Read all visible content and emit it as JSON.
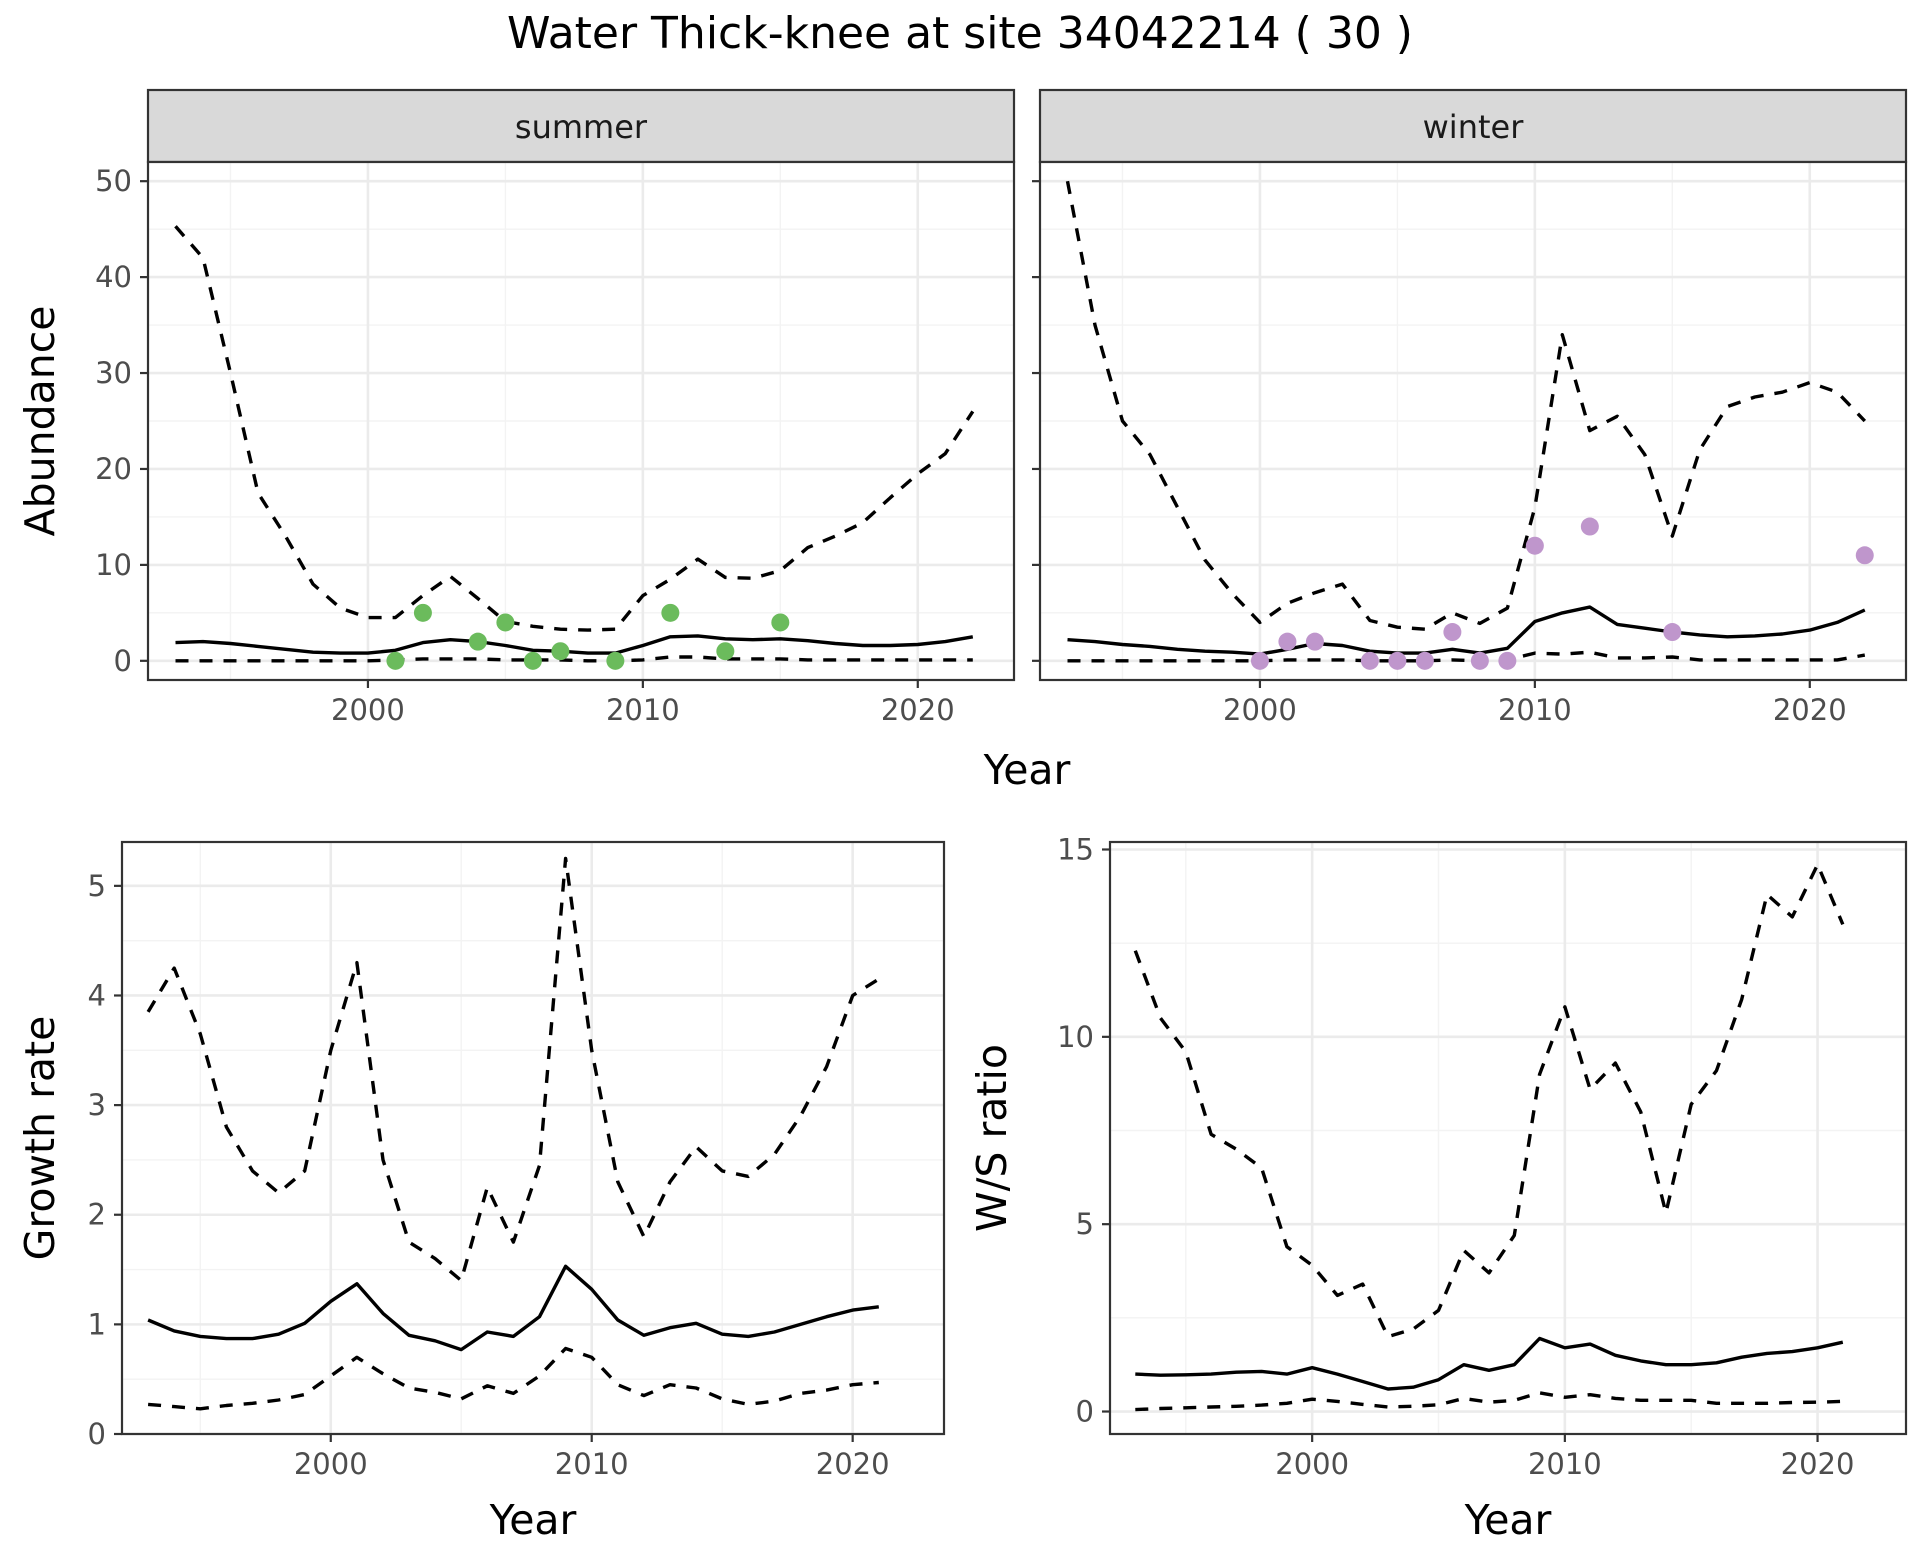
{
  "title": "Water Thick-knee at site 34042214 ( 30 )",
  "colors": {
    "summer_points": "#6bbb5c",
    "winter_points": "#bf96cc"
  },
  "chart_data": [
    {
      "type": "line",
      "facet_label": "summer",
      "xlabel": "Year",
      "ylabel": "Abundance",
      "xlim": [
        1992,
        2023.5
      ],
      "ylim": [
        -2,
        52
      ],
      "xticks": [
        2000,
        2010,
        2020
      ],
      "yticks": [
        0,
        10,
        20,
        30,
        40,
        50
      ],
      "grid": true,
      "series": [
        {
          "style": "dashed",
          "x": [
            1993,
            1994,
            1995,
            1996,
            1997,
            1998,
            1999,
            2000,
            2001,
            2002,
            2003,
            2004,
            2005,
            2006,
            2007,
            2008,
            2009,
            2010,
            2011,
            2012,
            2013,
            2014,
            2015,
            2016,
            2017,
            2018,
            2019,
            2020,
            2021,
            2022
          ],
          "values": [
            45.3,
            42,
            30,
            17.5,
            13,
            8,
            5.5,
            4.5,
            4.5,
            6.8,
            8.8,
            6.5,
            4.1,
            3.6,
            3.3,
            3.2,
            3.3,
            6.8,
            8.5,
            10.6,
            8.7,
            8.6,
            9.4,
            11.8,
            13,
            14.4,
            17,
            19.5,
            21.6,
            26
          ]
        },
        {
          "style": "solid",
          "x": [
            1993,
            1994,
            1995,
            1996,
            1997,
            1998,
            1999,
            2000,
            2001,
            2002,
            2003,
            2004,
            2005,
            2006,
            2007,
            2008,
            2009,
            2010,
            2011,
            2012,
            2013,
            2014,
            2015,
            2016,
            2017,
            2018,
            2019,
            2020,
            2021,
            2022
          ],
          "values": [
            1.9,
            2,
            1.8,
            1.5,
            1.2,
            0.9,
            0.8,
            0.8,
            1.1,
            1.9,
            2.2,
            2,
            1.6,
            1.1,
            1,
            0.8,
            0.8,
            1.6,
            2.5,
            2.6,
            2.3,
            2.2,
            2.3,
            2.1,
            1.8,
            1.6,
            1.6,
            1.7,
            2,
            2.5
          ]
        },
        {
          "style": "dashed",
          "x": [
            1993,
            1994,
            1995,
            1996,
            1997,
            1998,
            1999,
            2000,
            2001,
            2002,
            2003,
            2004,
            2005,
            2006,
            2007,
            2008,
            2009,
            2010,
            2011,
            2012,
            2013,
            2014,
            2015,
            2016,
            2017,
            2018,
            2019,
            2020,
            2021,
            2022
          ],
          "values": [
            0,
            0,
            0,
            0,
            0,
            0,
            0,
            0,
            0.1,
            0.2,
            0.2,
            0.2,
            0.1,
            0.1,
            0.1,
            0,
            0,
            0.1,
            0.4,
            0.4,
            0.2,
            0.2,
            0.2,
            0.1,
            0.1,
            0.1,
            0.1,
            0.1,
            0.1,
            0.1
          ]
        },
        {
          "style": "points",
          "color": "#6bbb5c",
          "x": [
            2001,
            2002,
            2004,
            2005,
            2006,
            2007,
            2009,
            2011,
            2013,
            2015
          ],
          "values": [
            0,
            5,
            2,
            4,
            0,
            1,
            0,
            5,
            1,
            4
          ]
        }
      ]
    },
    {
      "type": "line",
      "facet_label": "winter",
      "xlabel": "Year",
      "ylabel": "Abundance",
      "xlim": [
        1992,
        2023.5
      ],
      "ylim": [
        -2,
        52
      ],
      "xticks": [
        2000,
        2010,
        2020
      ],
      "yticks": [
        0,
        10,
        20,
        30,
        40,
        50
      ],
      "grid": true,
      "series": [
        {
          "style": "dashed",
          "x": [
            1993,
            1994,
            1995,
            1996,
            1997,
            1998,
            1999,
            2000,
            2001,
            2002,
            2003,
            2004,
            2005,
            2006,
            2007,
            2008,
            2009,
            2010,
            2011,
            2012,
            2013,
            2014,
            2015,
            2016,
            2017,
            2018,
            2019,
            2020,
            2021,
            2022
          ],
          "values": [
            50,
            35,
            25,
            21.5,
            16,
            10.5,
            7,
            4,
            6,
            7.1,
            8,
            4.2,
            3.5,
            3.3,
            5,
            3.9,
            5.5,
            16,
            34,
            24,
            25.5,
            21.5,
            13,
            22,
            26.5,
            27.5,
            28,
            29,
            28,
            25
          ]
        },
        {
          "style": "solid",
          "x": [
            1993,
            1994,
            1995,
            1996,
            1997,
            1998,
            1999,
            2000,
            2001,
            2002,
            2003,
            2004,
            2005,
            2006,
            2007,
            2008,
            2009,
            2010,
            2011,
            2012,
            2013,
            2014,
            2015,
            2016,
            2017,
            2018,
            2019,
            2020,
            2021,
            2022
          ],
          "values": [
            2.2,
            2,
            1.7,
            1.5,
            1.2,
            1,
            0.9,
            0.7,
            1.2,
            1.8,
            1.6,
            1,
            0.8,
            0.8,
            1.2,
            0.8,
            1.3,
            4.1,
            5,
            5.6,
            3.8,
            3.4,
            3,
            2.7,
            2.5,
            2.6,
            2.8,
            3.2,
            4,
            5.3
          ]
        },
        {
          "style": "dashed",
          "x": [
            1993,
            1994,
            1995,
            1996,
            1997,
            1998,
            1999,
            2000,
            2001,
            2002,
            2003,
            2004,
            2005,
            2006,
            2007,
            2008,
            2009,
            2010,
            2011,
            2012,
            2013,
            2014,
            2015,
            2016,
            2017,
            2018,
            2019,
            2020,
            2021,
            2022
          ],
          "values": [
            0,
            0,
            0,
            0,
            0,
            0,
            0,
            0,
            0.1,
            0.1,
            0.1,
            0,
            0,
            0,
            0.1,
            0,
            0.1,
            0.8,
            0.7,
            0.9,
            0.3,
            0.3,
            0.4,
            0.1,
            0.1,
            0.1,
            0.1,
            0.1,
            0.1,
            0.6
          ]
        },
        {
          "style": "points",
          "color": "#bf96cc",
          "x": [
            2000,
            2001,
            2002,
            2004,
            2005,
            2006,
            2007,
            2008,
            2009,
            2010,
            2012,
            2015,
            2022
          ],
          "values": [
            0,
            2,
            2,
            0,
            0,
            0,
            3,
            0,
            0,
            12,
            14,
            3,
            11
          ]
        }
      ]
    },
    {
      "type": "line",
      "xlabel": "Year",
      "ylabel": "Growth rate",
      "xlim": [
        1992,
        2023.5
      ],
      "ylim": [
        0,
        5.4
      ],
      "xticks": [
        2000,
        2010,
        2020
      ],
      "yticks": [
        0,
        1,
        2,
        3,
        4,
        5
      ],
      "grid": true,
      "series": [
        {
          "style": "dashed",
          "x": [
            1993,
            1994,
            1995,
            1996,
            1997,
            1998,
            1999,
            2000,
            2001,
            2002,
            2003,
            2004,
            2005,
            2006,
            2007,
            2008,
            2009,
            2010,
            2011,
            2012,
            2013,
            2014,
            2015,
            2016,
            2017,
            2018,
            2019,
            2020,
            2021
          ],
          "values": [
            3.85,
            4.25,
            3.65,
            2.8,
            2.4,
            2.2,
            2.4,
            3.5,
            4.3,
            2.5,
            1.75,
            1.6,
            1.4,
            2.25,
            1.75,
            2.45,
            5.25,
            3.5,
            2.3,
            1.8,
            2.3,
            2.62,
            2.4,
            2.35,
            2.55,
            2.9,
            3.35,
            4,
            4.15
          ]
        },
        {
          "style": "solid",
          "x": [
            1993,
            1994,
            1995,
            1996,
            1997,
            1998,
            1999,
            2000,
            2001,
            2002,
            2003,
            2004,
            2005,
            2006,
            2007,
            2008,
            2009,
            2010,
            2011,
            2012,
            2013,
            2014,
            2015,
            2016,
            2017,
            2018,
            2019,
            2020,
            2021
          ],
          "values": [
            1.04,
            0.94,
            0.89,
            0.87,
            0.87,
            0.91,
            1.01,
            1.21,
            1.37,
            1.1,
            0.9,
            0.85,
            0.77,
            0.93,
            0.89,
            1.07,
            1.53,
            1.32,
            1.04,
            0.9,
            0.97,
            1.01,
            0.91,
            0.89,
            0.93,
            1,
            1.07,
            1.13,
            1.16
          ]
        },
        {
          "style": "dashed",
          "x": [
            1993,
            1994,
            1995,
            1996,
            1997,
            1998,
            1999,
            2000,
            2001,
            2002,
            2003,
            2004,
            2005,
            2006,
            2007,
            2008,
            2009,
            2010,
            2011,
            2012,
            2013,
            2014,
            2015,
            2016,
            2017,
            2018,
            2019,
            2020,
            2021
          ],
          "values": [
            0.27,
            0.25,
            0.23,
            0.26,
            0.28,
            0.31,
            0.36,
            0.53,
            0.7,
            0.55,
            0.42,
            0.38,
            0.32,
            0.44,
            0.37,
            0.53,
            0.78,
            0.7,
            0.45,
            0.35,
            0.45,
            0.42,
            0.32,
            0.27,
            0.3,
            0.37,
            0.4,
            0.45,
            0.47
          ]
        }
      ]
    },
    {
      "type": "line",
      "xlabel": "Year",
      "ylabel": "W/S ratio",
      "xlim": [
        1992,
        2023.5
      ],
      "ylim": [
        -0.6,
        15.2
      ],
      "xticks": [
        2000,
        2010,
        2020
      ],
      "yticks": [
        0,
        5,
        10,
        15
      ],
      "grid": true,
      "series": [
        {
          "style": "dashed",
          "x": [
            1993,
            1994,
            1995,
            1996,
            1997,
            1998,
            1999,
            2000,
            2001,
            2002,
            2003,
            2004,
            2005,
            2006,
            2007,
            2008,
            2009,
            2010,
            2011,
            2012,
            2013,
            2014,
            2015,
            2016,
            2017,
            2018,
            2019,
            2020,
            2021
          ],
          "values": [
            12.3,
            10.5,
            9.6,
            7.4,
            7,
            6.5,
            4.4,
            3.9,
            3.1,
            3.4,
            2,
            2.2,
            2.7,
            4.3,
            3.7,
            4.7,
            9,
            10.8,
            8.6,
            9.3,
            8,
            5.3,
            8.2,
            9.1,
            11,
            13.8,
            13.2,
            14.6,
            13
          ]
        },
        {
          "style": "solid",
          "x": [
            1993,
            1994,
            1995,
            1996,
            1997,
            1998,
            1999,
            2000,
            2001,
            2002,
            2003,
            2004,
            2005,
            2006,
            2007,
            2008,
            2009,
            2010,
            2011,
            2012,
            2013,
            2014,
            2015,
            2016,
            2017,
            2018,
            2019,
            2020,
            2021
          ],
          "values": [
            1,
            0.97,
            0.98,
            1,
            1.05,
            1.07,
            1,
            1.17,
            1,
            0.8,
            0.6,
            0.65,
            0.85,
            1.25,
            1.1,
            1.25,
            1.95,
            1.7,
            1.8,
            1.5,
            1.35,
            1.25,
            1.25,
            1.3,
            1.45,
            1.55,
            1.6,
            1.7,
            1.85
          ]
        },
        {
          "style": "dashed",
          "x": [
            1993,
            1994,
            1995,
            1996,
            1997,
            1998,
            1999,
            2000,
            2001,
            2002,
            2003,
            2004,
            2005,
            2006,
            2007,
            2008,
            2009,
            2010,
            2011,
            2012,
            2013,
            2014,
            2015,
            2016,
            2017,
            2018,
            2019,
            2020,
            2021
          ],
          "values": [
            0.05,
            0.08,
            0.1,
            0.12,
            0.14,
            0.17,
            0.22,
            0.33,
            0.27,
            0.19,
            0.12,
            0.14,
            0.18,
            0.35,
            0.25,
            0.3,
            0.5,
            0.38,
            0.45,
            0.35,
            0.3,
            0.3,
            0.3,
            0.22,
            0.22,
            0.22,
            0.24,
            0.25,
            0.27
          ]
        }
      ]
    }
  ],
  "shared_xlabel_top": "Year"
}
